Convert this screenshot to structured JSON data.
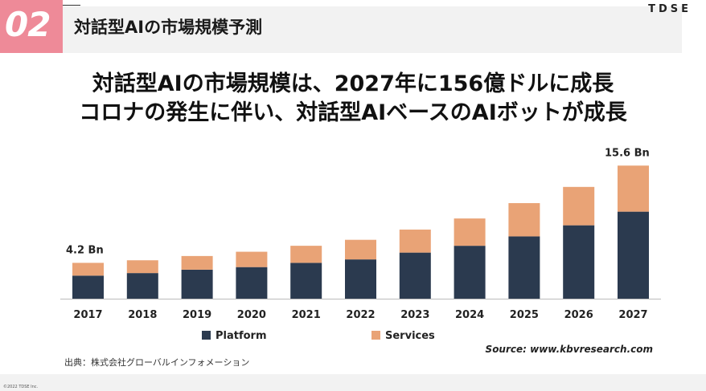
{
  "header": {
    "slide_number": "02",
    "title": "対話型AIの市場規模予測",
    "brand": "TDSE"
  },
  "headline": {
    "line1": "対話型AIの市場規模は、2027年に156億ドルに成長",
    "line2": "コロナの発生に伴い、対話型AIベースのAIボットが成長"
  },
  "chart_data": {
    "type": "bar",
    "stacked": true,
    "categories": [
      "2017",
      "2018",
      "2019",
      "2020",
      "2021",
      "2022",
      "2023",
      "2024",
      "2025",
      "2026",
      "2027"
    ],
    "series": [
      {
        "name": "Platform",
        "color": "#2b3a4f",
        "values": [
          2.7,
          3.0,
          3.4,
          3.7,
          4.2,
          4.6,
          5.4,
          6.2,
          7.3,
          8.6,
          10.2
        ]
      },
      {
        "name": "Services",
        "color": "#e9a376",
        "values": [
          1.5,
          1.5,
          1.6,
          1.8,
          2.0,
          2.3,
          2.7,
          3.2,
          3.9,
          4.5,
          5.4
        ]
      }
    ],
    "annotations": [
      {
        "category": "2017",
        "text": "4.2 Bn"
      },
      {
        "category": "2027",
        "text": "15.6 Bn"
      }
    ],
    "ylim": [
      0,
      16
    ],
    "grid": false,
    "legend": "bottom-center",
    "source_note": "Source: www.kbvresearch.com"
  },
  "source_jp": "出典：株式会社グローバルインフォメーション",
  "footer": {
    "copyright": "©2022 TDSE Inc."
  }
}
